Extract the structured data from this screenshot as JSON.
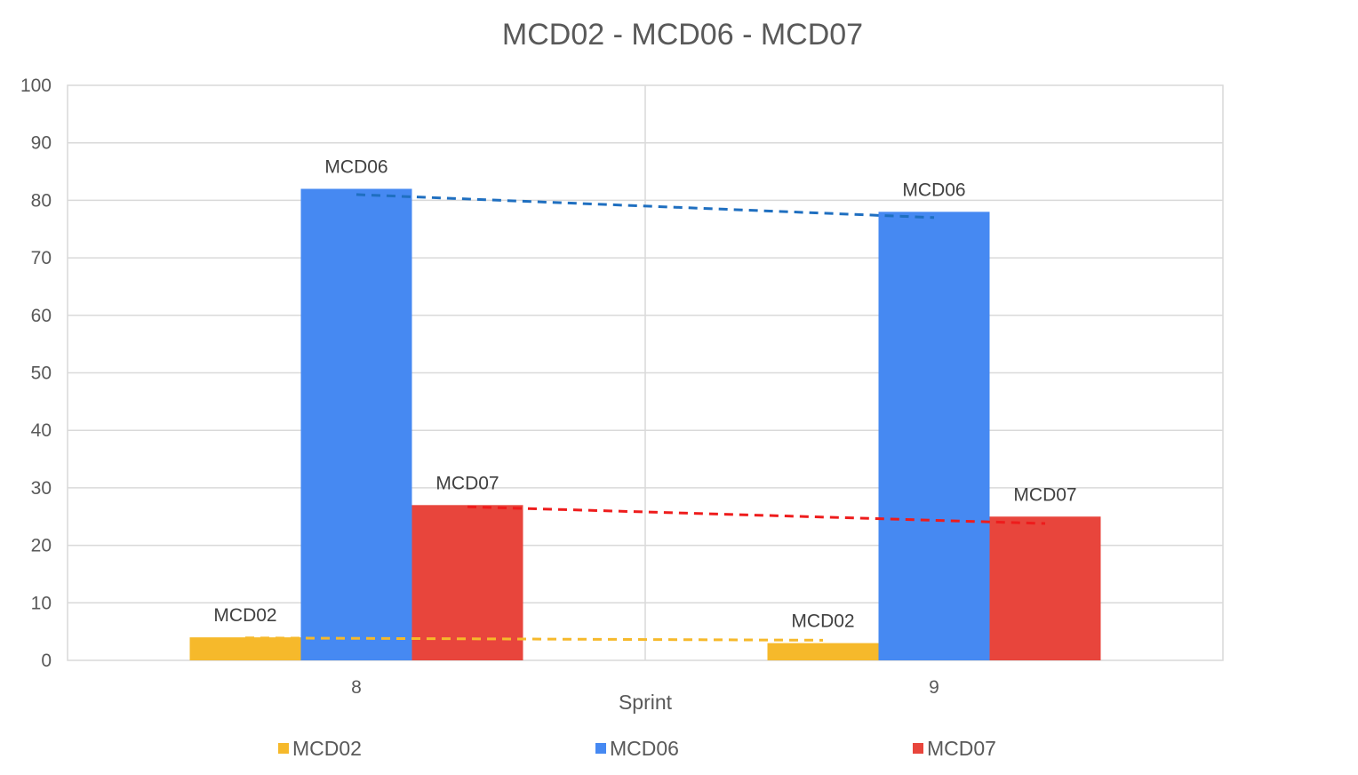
{
  "chart_data": {
    "type": "bar",
    "title": "MCD02 - MCD06 - MCD07",
    "xlabel": "Sprint",
    "ylabel": "",
    "categories": [
      "8",
      "9"
    ],
    "ylim": [
      0,
      100
    ],
    "yticks": [
      0,
      10,
      20,
      30,
      40,
      50,
      60,
      70,
      80,
      90,
      100
    ],
    "grid": true,
    "legend_position": "bottom",
    "series": [
      {
        "name": "MCD02",
        "values": [
          4,
          3
        ],
        "color": "#f6b92b",
        "trend_color": "#f6b92b",
        "trendline": [
          3.9,
          3.5
        ]
      },
      {
        "name": "MCD06",
        "values": [
          82,
          78
        ],
        "color": "#4689f2",
        "trend_color": "#1f6fc0",
        "trendline": [
          81,
          77
        ]
      },
      {
        "name": "MCD07",
        "values": [
          27,
          25
        ],
        "color": "#e8453c",
        "trend_color": "#ee1c1c",
        "trendline": [
          26.7,
          23.8
        ]
      }
    ]
  }
}
